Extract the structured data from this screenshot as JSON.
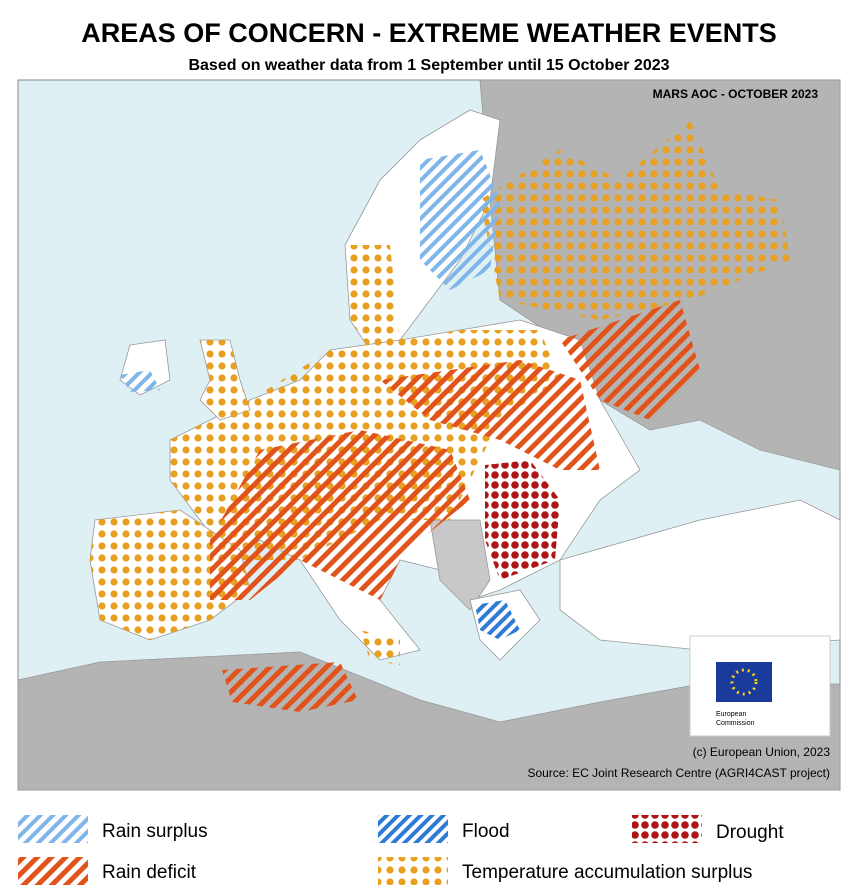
{
  "header": {
    "title": "AREAS OF CONCERN - EXTREME WEATHER EVENTS",
    "subtitle": "Based on weather data from 1 September until 15 October 2023"
  },
  "map": {
    "stamp": "MARS AOC - OCTOBER 2023",
    "logo_text": [
      "European",
      "Commission"
    ],
    "copyright": "(c) European Union, 2023",
    "source": "Source: EC Joint Research Centre (AGRI4CAST project)"
  },
  "legend": [
    {
      "label": "Rain surplus"
    },
    {
      "label": "Flood"
    },
    {
      "label": "Drought"
    },
    {
      "label": "Rain deficit"
    },
    {
      "label": "Temperature accumulation surplus"
    }
  ]
}
